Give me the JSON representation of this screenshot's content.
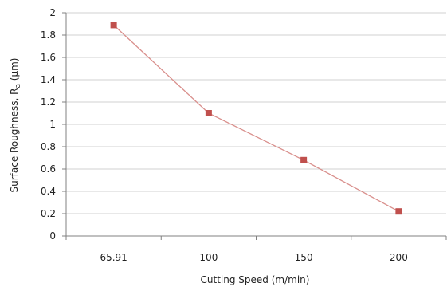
{
  "chart_data": {
    "type": "line",
    "categories": [
      "65.91",
      "100",
      "150",
      "200"
    ],
    "series": [
      {
        "values": [
          1.89,
          1.1,
          0.68,
          0.22
        ],
        "color": "#c0504d"
      }
    ],
    "xlabel": "Cutting Speed  (m/min)",
    "ylabel_prefix": "Surface Roughness, R",
    "ylabel_subscript": "a",
    "ylabel_suffix": " (µm)",
    "ylim": [
      0,
      2
    ],
    "yticks": [
      "0",
      "0.2",
      "0.4",
      "0.6",
      "0.8",
      "1",
      "1.2",
      "1.4",
      "1.6",
      "1.8",
      "2"
    ],
    "grid": true,
    "marker": "square"
  }
}
